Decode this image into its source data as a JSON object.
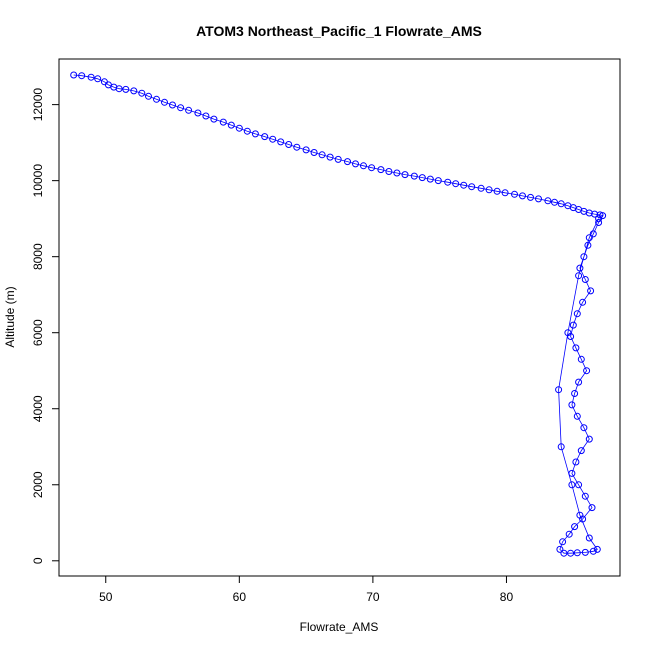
{
  "chart_data": {
    "type": "scatter",
    "title": "ATOM3 Northeast_Pacific_1 Flowrate_AMS",
    "xlabel": "Flowrate_AMS",
    "ylabel": "Altitude (m)",
    "xlim": [
      46.5,
      88.5
    ],
    "ylim": [
      -400,
      13200
    ],
    "xticks": [
      50,
      60,
      70,
      80
    ],
    "yticks": [
      0,
      2000,
      4000,
      6000,
      8000,
      10000,
      12000
    ],
    "grid": false,
    "legend": "none",
    "colors": {
      "points": "#0000ff",
      "axes": "#000000"
    },
    "series": [
      {
        "style": "points-and-lines",
        "x": [
          47.6,
          48.2,
          48.9,
          49.4,
          49.9,
          50.2,
          50.6,
          51.0,
          51.5,
          52.1,
          52.7,
          53.2,
          53.8,
          54.4,
          55.0,
          55.6,
          56.2,
          56.9,
          57.5,
          58.1,
          58.8,
          59.4,
          60.0,
          60.6,
          61.2,
          61.9,
          62.5,
          63.1,
          63.7,
          64.3,
          65.0,
          65.6,
          66.2,
          66.8,
          67.4,
          68.1,
          68.7,
          69.3,
          69.9,
          70.6,
          71.2,
          71.8,
          72.4,
          73.1,
          73.7,
          74.3,
          74.9,
          75.6,
          76.2,
          76.8,
          77.4,
          78.1,
          78.7,
          79.3,
          79.9,
          80.6,
          81.2,
          81.8,
          82.4,
          83.1,
          83.6,
          84.1,
          84.6,
          85.0,
          85.4,
          85.8,
          86.2,
          86.6,
          87.0,
          87.2,
          86.9,
          86.5,
          86.1,
          85.8,
          85.5,
          85.9,
          86.3,
          85.7,
          85.3,
          85.0,
          84.8,
          85.2,
          85.6,
          86.0,
          85.4,
          85.1,
          84.9,
          85.3,
          85.8,
          86.2,
          85.6,
          85.2,
          84.9,
          85.4,
          85.9,
          86.4,
          85.7,
          85.1,
          84.7,
          84.2,
          84.0,
          84.3,
          84.8,
          85.3,
          85.9,
          86.5,
          86.8,
          86.2,
          85.5,
          84.9,
          84.1,
          83.9,
          84.6,
          85.4,
          86.2,
          86.9
        ],
        "y": [
          12780,
          12760,
          12720,
          12680,
          12600,
          12520,
          12460,
          12420,
          12400,
          12360,
          12300,
          12220,
          12140,
          12060,
          11990,
          11920,
          11850,
          11780,
          11700,
          11620,
          11540,
          11460,
          11380,
          11300,
          11230,
          11160,
          11090,
          11020,
          10950,
          10880,
          10810,
          10740,
          10680,
          10620,
          10560,
          10500,
          10440,
          10390,
          10340,
          10290,
          10240,
          10200,
          10160,
          10120,
          10080,
          10040,
          10000,
          9960,
          9920,
          9880,
          9840,
          9800,
          9760,
          9720,
          9680,
          9640,
          9600,
          9560,
          9520,
          9470,
          9430,
          9390,
          9340,
          9290,
          9240,
          9190,
          9150,
          9120,
          9100,
          9080,
          8900,
          8600,
          8300,
          8000,
          7700,
          7400,
          7100,
          6800,
          6500,
          6200,
          5900,
          5600,
          5300,
          5000,
          4700,
          4400,
          4100,
          3800,
          3500,
          3200,
          2900,
          2600,
          2300,
          2000,
          1700,
          1400,
          1100,
          900,
          700,
          500,
          300,
          200,
          200,
          210,
          220,
          250,
          300,
          600,
          1200,
          2000,
          3000,
          4500,
          6000,
          7500,
          8500,
          9000
        ]
      }
    ]
  }
}
